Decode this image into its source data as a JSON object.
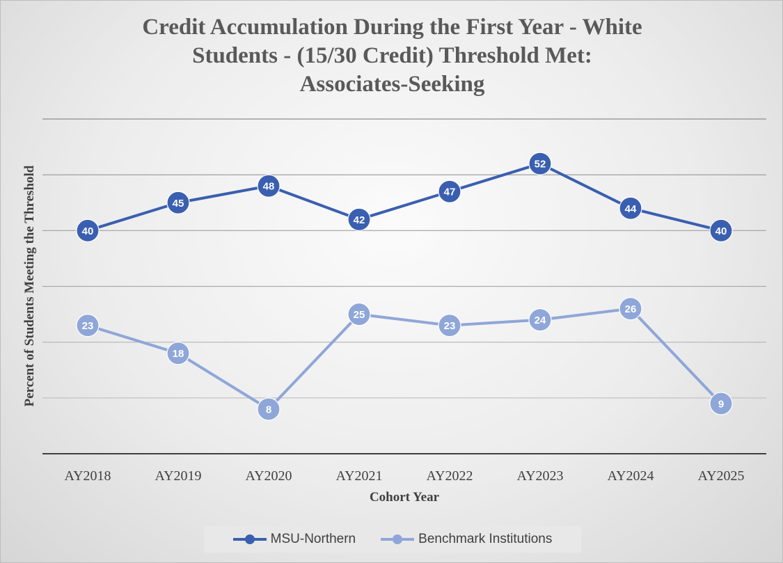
{
  "chart_data": {
    "type": "line",
    "title_lines": [
      "Credit Accumulation During the First Year - White",
      "Students - (15/30 Credit) Threshold Met:",
      "Associates-Seeking"
    ],
    "xlabel": "Cohort Year",
    "ylabel": "Percent of  Students Meeting the Threshold",
    "categories": [
      "AY2018",
      "AY2019",
      "AY2020",
      "AY2021",
      "AY2022",
      "AY2023",
      "AY2024",
      "AY2025"
    ],
    "ylim": [
      0,
      60
    ],
    "gridlines": [
      10,
      20,
      30,
      40,
      50,
      60
    ],
    "y_tick_labels_shown": false,
    "grid": true,
    "legend_position": "bottom",
    "series": [
      {
        "name": "MSU-Northern",
        "color": "#3a5fb0",
        "values": [
          40,
          45,
          48,
          42,
          47,
          52,
          44,
          40
        ]
      },
      {
        "name": "Benchmark Institutions",
        "color": "#8fa6d8",
        "values": [
          23,
          18,
          8,
          25,
          23,
          24,
          26,
          9
        ]
      }
    ]
  }
}
